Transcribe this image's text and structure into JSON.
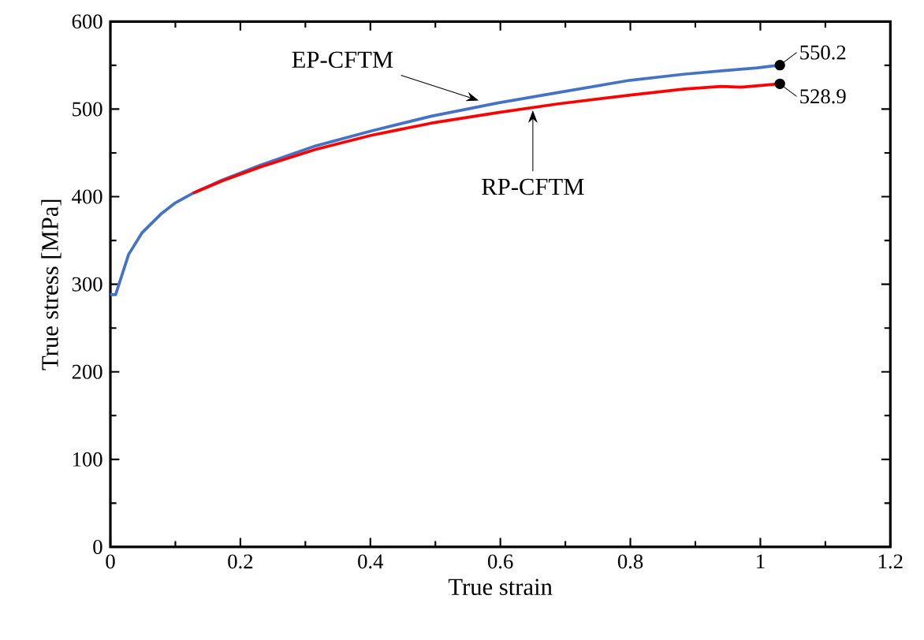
{
  "chart_data": {
    "type": "line",
    "xlabel": "True strain",
    "ylabel": "True stress [MPa]",
    "xlim": [
      0,
      1.2
    ],
    "ylim": [
      0,
      600
    ],
    "xticks": [
      0,
      0.2,
      0.4,
      0.6,
      0.8,
      1,
      1.2
    ],
    "yticks": [
      0,
      100,
      200,
      300,
      400,
      500,
      600
    ],
    "grid": false,
    "line_style": "solid",
    "marker": "none",
    "series": [
      {
        "color": "#4472c4",
        "x": [
          0,
          0.008,
          0.028,
          0.049,
          0.079,
          0.1,
          0.127,
          0.172,
          0.231,
          0.316,
          0.401,
          0.494,
          0.596,
          0.689,
          0.8,
          0.884,
          0.944,
          0.995,
          1.03
        ],
        "values": [
          288,
          288,
          334,
          359,
          381,
          393,
          404,
          419,
          436,
          458,
          475,
          492,
          507,
          519,
          533,
          540,
          544,
          547,
          550.2
        ]
      },
      {
        "color": "#ff0000",
        "x": [
          0.127,
          0.172,
          0.231,
          0.316,
          0.401,
          0.494,
          0.596,
          0.689,
          0.8,
          0.884,
          0.94,
          0.97,
          1.03
        ],
        "values": [
          404,
          418,
          434,
          454,
          470,
          484,
          496,
          506,
          516,
          523,
          526,
          525,
          528.9
        ]
      },
      {
        "type": "scatter",
        "marker": "circle",
        "color": "#000000",
        "x": [
          1.03,
          1.03
        ],
        "values": [
          550.2,
          528.9
        ]
      }
    ],
    "annotations": [
      {
        "text": "EP-CFTM",
        "x": 0.57,
        "y": 505
      },
      {
        "text": "RP-CFTM",
        "x": 0.65,
        "y": 501
      },
      {
        "text": "550.2",
        "x": 1.03,
        "y": 550.2
      },
      {
        "text": "528.9",
        "x": 1.03,
        "y": 528.9
      }
    ]
  }
}
